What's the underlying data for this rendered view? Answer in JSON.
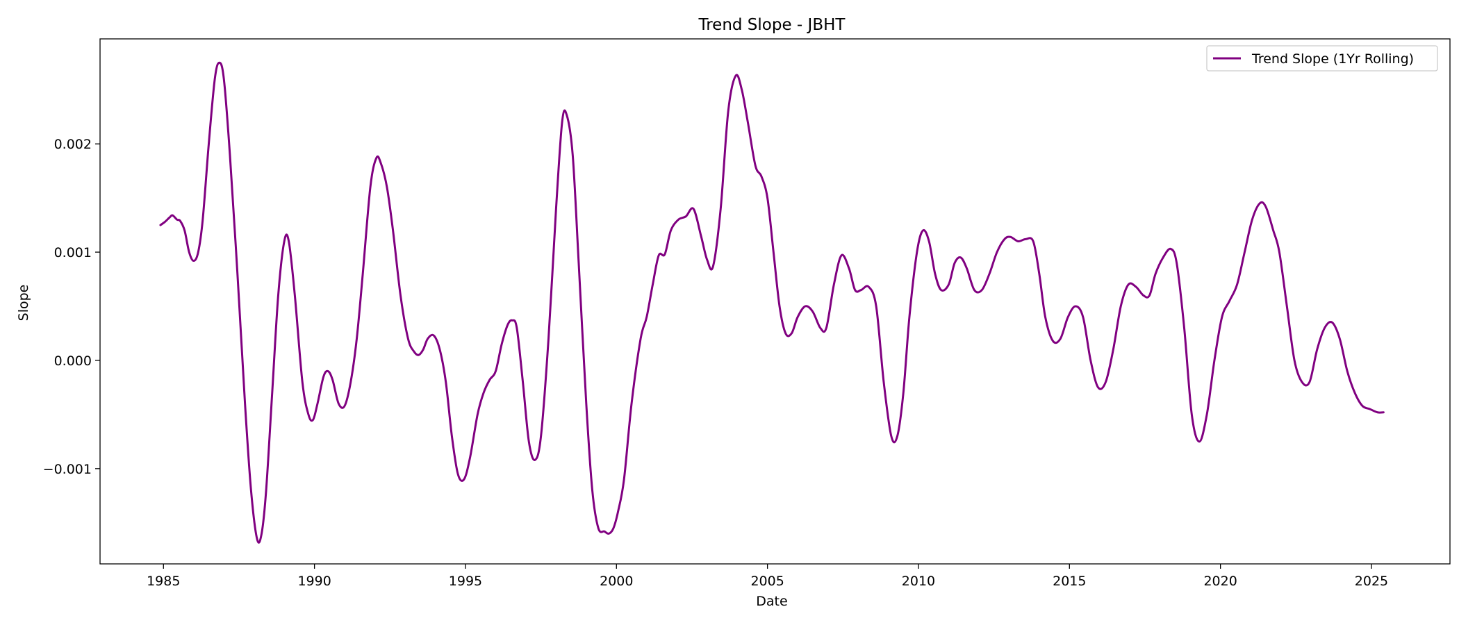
{
  "chart_data": {
    "type": "line",
    "title": "Trend Slope - JBHT",
    "xlabel": "Date",
    "ylabel": "Slope",
    "xlim": [
      1982.9,
      2027.6
    ],
    "ylim": [
      -0.00188,
      0.00297
    ],
    "x_ticks": [
      1985,
      1990,
      1995,
      2000,
      2005,
      2010,
      2015,
      2020,
      2025
    ],
    "x_tick_labels": [
      "1985",
      "1990",
      "1995",
      "2000",
      "2005",
      "2010",
      "2015",
      "2020",
      "2025"
    ],
    "y_ticks": [
      -0.001,
      0.0,
      0.001,
      0.002
    ],
    "y_tick_labels": [
      "−0.001",
      "0.000",
      "0.001",
      "0.002"
    ],
    "grid": false,
    "legend_position": "top-right",
    "series": [
      {
        "name": "Trend Slope (1Yr Rolling)",
        "color": "#800080",
        "points": [
          [
            1984.9,
            0.00125
          ],
          [
            1985.05,
            0.00128
          ],
          [
            1985.2,
            0.00132
          ],
          [
            1985.3,
            0.00134
          ],
          [
            1985.45,
            0.0013
          ],
          [
            1985.55,
            0.00129
          ],
          [
            1985.7,
            0.0012
          ],
          [
            1985.85,
            0.001
          ],
          [
            1986.0,
            0.00092
          ],
          [
            1986.15,
            0.001
          ],
          [
            1986.3,
            0.0013
          ],
          [
            1986.5,
            0.002
          ],
          [
            1986.7,
            0.0026
          ],
          [
            1986.85,
            0.00275
          ],
          [
            1987.0,
            0.0026
          ],
          [
            1987.2,
            0.0019
          ],
          [
            1987.45,
            0.0008
          ],
          [
            1987.7,
            -0.0004
          ],
          [
            1987.9,
            -0.0012
          ],
          [
            1988.1,
            -0.00165
          ],
          [
            1988.25,
            -0.0016
          ],
          [
            1988.4,
            -0.0012
          ],
          [
            1988.6,
            -0.0003
          ],
          [
            1988.8,
            0.0006
          ],
          [
            1989.0,
            0.0011
          ],
          [
            1989.15,
            0.0011
          ],
          [
            1989.35,
            0.0006
          ],
          [
            1989.6,
            -0.0002
          ],
          [
            1989.8,
            -0.0005
          ],
          [
            1989.95,
            -0.00055
          ],
          [
            1990.1,
            -0.0004
          ],
          [
            1990.3,
            -0.00015
          ],
          [
            1990.45,
            -0.0001
          ],
          [
            1990.6,
            -0.00018
          ],
          [
            1990.8,
            -0.0004
          ],
          [
            1991.0,
            -0.00042
          ],
          [
            1991.2,
            -0.0002
          ],
          [
            1991.4,
            0.0002
          ],
          [
            1991.6,
            0.0008
          ],
          [
            1991.85,
            0.0016
          ],
          [
            1992.05,
            0.00187
          ],
          [
            1992.2,
            0.00182
          ],
          [
            1992.4,
            0.0016
          ],
          [
            1992.6,
            0.0012
          ],
          [
            1992.85,
            0.0006
          ],
          [
            1993.1,
            0.0002
          ],
          [
            1993.3,
            8e-05
          ],
          [
            1993.45,
            5e-05
          ],
          [
            1993.6,
            0.0001
          ],
          [
            1993.75,
            0.0002
          ],
          [
            1993.95,
            0.00023
          ],
          [
            1994.15,
            0.0001
          ],
          [
            1994.35,
            -0.0002
          ],
          [
            1994.55,
            -0.0007
          ],
          [
            1994.75,
            -0.00105
          ],
          [
            1994.95,
            -0.0011
          ],
          [
            1995.15,
            -0.0009
          ],
          [
            1995.4,
            -0.0005
          ],
          [
            1995.6,
            -0.0003
          ],
          [
            1995.8,
            -0.00018
          ],
          [
            1996.0,
            -0.0001
          ],
          [
            1996.2,
            0.00015
          ],
          [
            1996.4,
            0.00033
          ],
          [
            1996.55,
            0.00037
          ],
          [
            1996.7,
            0.0003
          ],
          [
            1996.9,
            -0.0002
          ],
          [
            1997.1,
            -0.00075
          ],
          [
            1997.3,
            -0.00092
          ],
          [
            1997.5,
            -0.0007
          ],
          [
            1997.75,
            0.0002
          ],
          [
            1998.0,
            0.0014
          ],
          [
            1998.2,
            0.0022
          ],
          [
            1998.35,
            0.00227
          ],
          [
            1998.55,
            0.0019
          ],
          [
            1998.75,
            0.0009
          ],
          [
            1999.0,
            -0.0004
          ],
          [
            1999.2,
            -0.0012
          ],
          [
            1999.4,
            -0.00155
          ],
          [
            1999.6,
            -0.00158
          ],
          [
            1999.75,
            -0.0016
          ],
          [
            1999.9,
            -0.00155
          ],
          [
            2000.05,
            -0.0014
          ],
          [
            2000.25,
            -0.0011
          ],
          [
            2000.5,
            -0.0004
          ],
          [
            2000.8,
            0.0002
          ],
          [
            2001.0,
            0.0004
          ],
          [
            2001.2,
            0.0007
          ],
          [
            2001.4,
            0.00097
          ],
          [
            2001.6,
            0.00098
          ],
          [
            2001.8,
            0.0012
          ],
          [
            2002.05,
            0.0013
          ],
          [
            2002.3,
            0.00133
          ],
          [
            2002.55,
            0.0014
          ],
          [
            2002.8,
            0.00115
          ],
          [
            2003.0,
            0.00093
          ],
          [
            2003.2,
            0.00087
          ],
          [
            2003.45,
            0.0014
          ],
          [
            2003.7,
            0.0023
          ],
          [
            2003.95,
            0.00263
          ],
          [
            2004.15,
            0.0025
          ],
          [
            2004.35,
            0.0022
          ],
          [
            2004.6,
            0.0018
          ],
          [
            2004.8,
            0.0017
          ],
          [
            2005.0,
            0.0015
          ],
          [
            2005.2,
            0.001
          ],
          [
            2005.4,
            0.0005
          ],
          [
            2005.6,
            0.00025
          ],
          [
            2005.8,
            0.00025
          ],
          [
            2006.0,
            0.0004
          ],
          [
            2006.25,
            0.0005
          ],
          [
            2006.5,
            0.00045
          ],
          [
            2006.75,
            0.0003
          ],
          [
            2006.95,
            0.0003
          ],
          [
            2007.2,
            0.0007
          ],
          [
            2007.45,
            0.00097
          ],
          [
            2007.7,
            0.00085
          ],
          [
            2007.9,
            0.00065
          ],
          [
            2008.1,
            0.00065
          ],
          [
            2008.35,
            0.00068
          ],
          [
            2008.6,
            0.0005
          ],
          [
            2008.85,
            -0.0002
          ],
          [
            2009.1,
            -0.0007
          ],
          [
            2009.3,
            -0.0007
          ],
          [
            2009.5,
            -0.0003
          ],
          [
            2009.7,
            0.0004
          ],
          [
            2009.95,
            0.001
          ],
          [
            2010.15,
            0.0012
          ],
          [
            2010.35,
            0.0011
          ],
          [
            2010.55,
            0.0008
          ],
          [
            2010.75,
            0.00065
          ],
          [
            2011.0,
            0.0007
          ],
          [
            2011.2,
            0.0009
          ],
          [
            2011.4,
            0.00095
          ],
          [
            2011.6,
            0.00085
          ],
          [
            2011.85,
            0.00065
          ],
          [
            2012.1,
            0.00065
          ],
          [
            2012.35,
            0.0008
          ],
          [
            2012.6,
            0.001
          ],
          [
            2012.85,
            0.00112
          ],
          [
            2013.05,
            0.00114
          ],
          [
            2013.3,
            0.0011
          ],
          [
            2013.55,
            0.00112
          ],
          [
            2013.8,
            0.0011
          ],
          [
            2014.0,
            0.0008
          ],
          [
            2014.2,
            0.0004
          ],
          [
            2014.45,
            0.00018
          ],
          [
            2014.7,
            0.0002
          ],
          [
            2014.95,
            0.0004
          ],
          [
            2015.2,
            0.0005
          ],
          [
            2015.45,
            0.0004
          ],
          [
            2015.7,
            0.0
          ],
          [
            2015.95,
            -0.00025
          ],
          [
            2016.2,
            -0.0002
          ],
          [
            2016.45,
            0.0001
          ],
          [
            2016.7,
            0.0005
          ],
          [
            2016.95,
            0.0007
          ],
          [
            2017.2,
            0.00068
          ],
          [
            2017.45,
            0.0006
          ],
          [
            2017.65,
            0.0006
          ],
          [
            2017.85,
            0.0008
          ],
          [
            2018.1,
            0.00095
          ],
          [
            2018.35,
            0.00103
          ],
          [
            2018.55,
            0.0009
          ],
          [
            2018.8,
            0.0003
          ],
          [
            2019.05,
            -0.0005
          ],
          [
            2019.3,
            -0.00075
          ],
          [
            2019.55,
            -0.0005
          ],
          [
            2019.8,
            0.0
          ],
          [
            2020.05,
            0.0004
          ],
          [
            2020.3,
            0.00055
          ],
          [
            2020.55,
            0.0007
          ],
          [
            2020.8,
            0.001
          ],
          [
            2021.05,
            0.0013
          ],
          [
            2021.3,
            0.00145
          ],
          [
            2021.5,
            0.00142
          ],
          [
            2021.75,
            0.0012
          ],
          [
            2021.95,
            0.001
          ],
          [
            2022.2,
            0.0005
          ],
          [
            2022.45,
            0.0
          ],
          [
            2022.7,
            -0.0002
          ],
          [
            2022.95,
            -0.0002
          ],
          [
            2023.2,
            0.0001
          ],
          [
            2023.45,
            0.0003
          ],
          [
            2023.7,
            0.00035
          ],
          [
            2023.95,
            0.0002
          ],
          [
            2024.2,
            -0.0001
          ],
          [
            2024.45,
            -0.0003
          ],
          [
            2024.7,
            -0.00042
          ],
          [
            2024.95,
            -0.00045
          ],
          [
            2025.2,
            -0.00048
          ],
          [
            2025.4,
            -0.00048
          ]
        ]
      }
    ]
  }
}
